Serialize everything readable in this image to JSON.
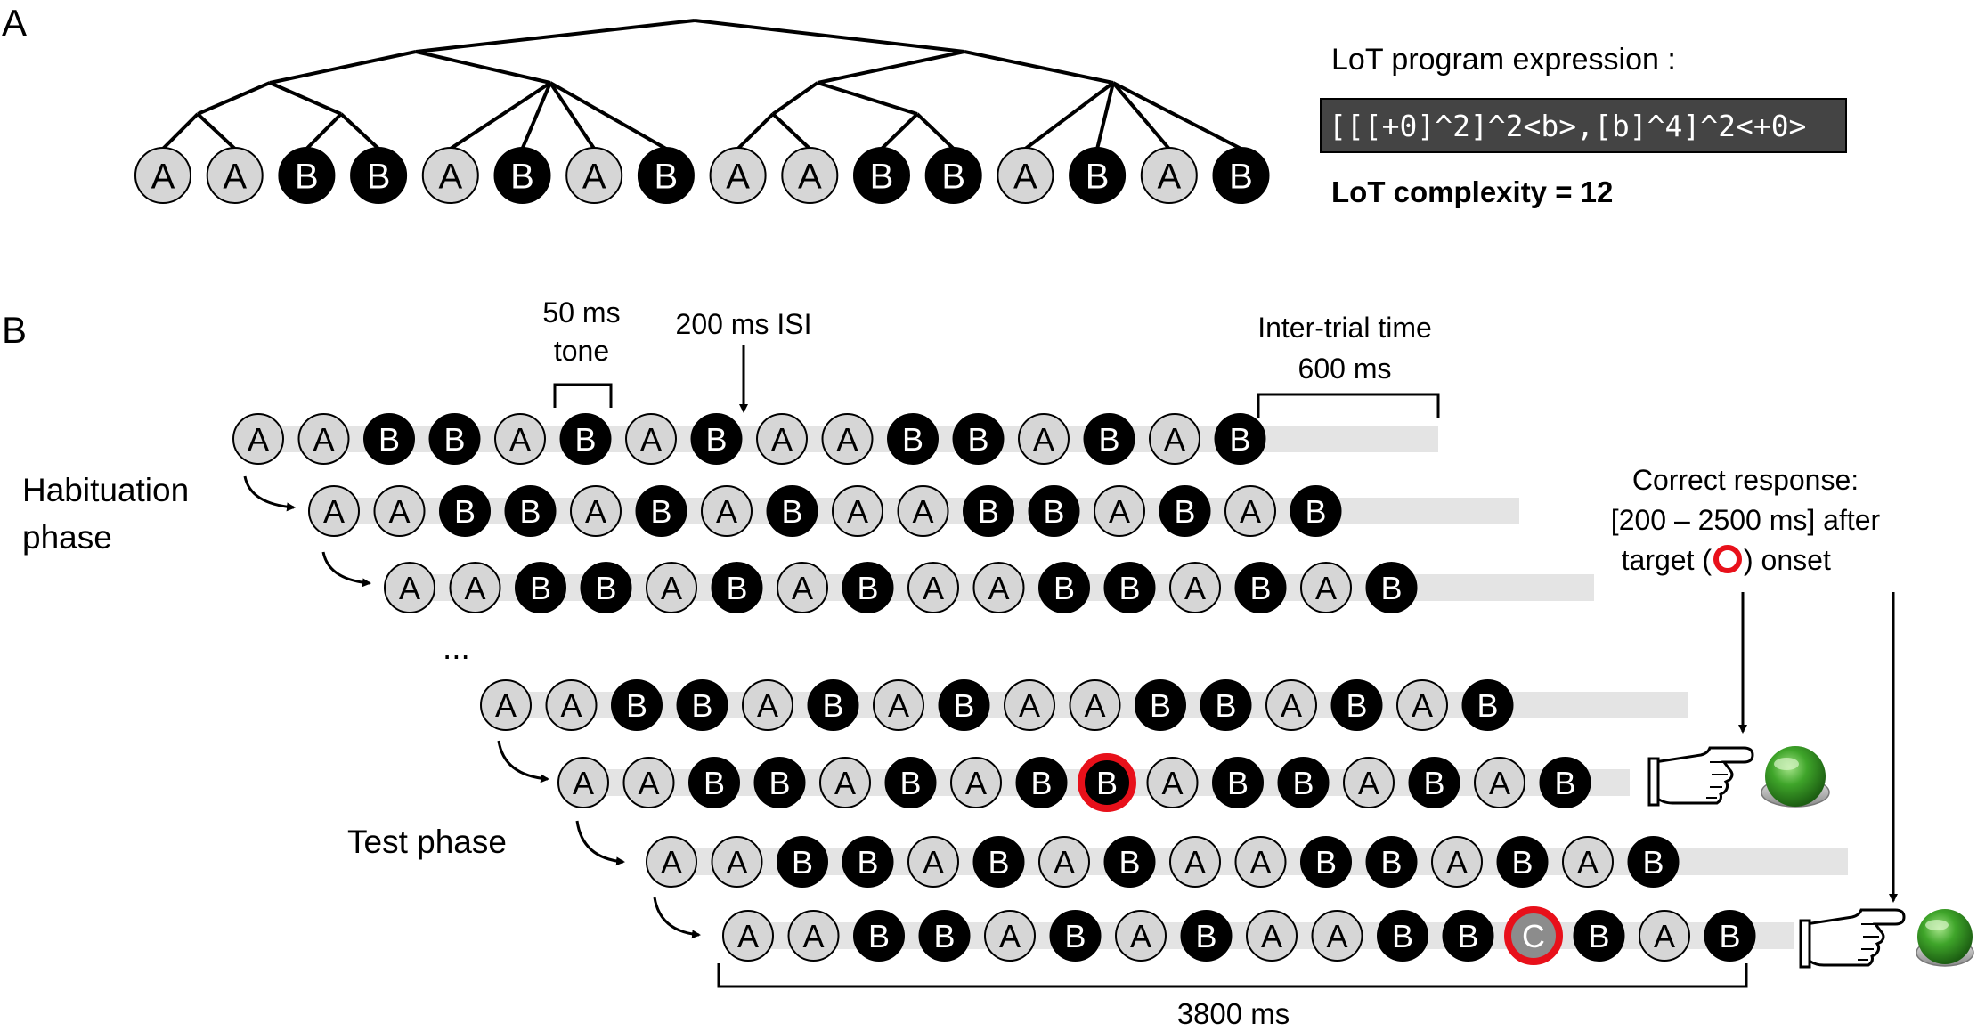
{
  "panel_a": {
    "label": "A",
    "sequence": [
      "A",
      "A",
      "B",
      "B",
      "A",
      "B",
      "A",
      "B",
      "A",
      "A",
      "B",
      "B",
      "A",
      "B",
      "A",
      "B"
    ],
    "program_title": "LoT program expression :",
    "program_expression": "[[[+0]^2]^2<b>,[b]^4]^2<+0>",
    "complexity_label": "LoT complexity = 12"
  },
  "panel_b": {
    "label": "B",
    "tone_label_line1": "50 ms",
    "tone_label_line2": "tone",
    "isi_label": "200 ms ISI",
    "intertrial_line1": "Inter-trial time",
    "intertrial_line2": "600 ms",
    "habituation_line1": "Habituation",
    "habituation_line2": "phase",
    "ellipsis": "...",
    "test_label": "Test phase",
    "response_line1": "Correct response:",
    "response_line2": "[200 – 2500 ms] after",
    "response_line3_left": "target (",
    "response_line3_right": ") onset",
    "duration_label": "3800 ms",
    "trials": [
      {
        "sequence": [
          "A",
          "A",
          "B",
          "B",
          "A",
          "B",
          "A",
          "B",
          "A",
          "A",
          "B",
          "B",
          "A",
          "B",
          "A",
          "B"
        ],
        "deviant_index": null
      },
      {
        "sequence": [
          "A",
          "A",
          "B",
          "B",
          "A",
          "B",
          "A",
          "B",
          "A",
          "A",
          "B",
          "B",
          "A",
          "B",
          "A",
          "B"
        ],
        "deviant_index": null
      },
      {
        "sequence": [
          "A",
          "A",
          "B",
          "B",
          "A",
          "B",
          "A",
          "B",
          "A",
          "A",
          "B",
          "B",
          "A",
          "B",
          "A",
          "B"
        ],
        "deviant_index": null
      },
      {
        "sequence": [
          "A",
          "A",
          "B",
          "B",
          "A",
          "B",
          "A",
          "B",
          "A",
          "A",
          "B",
          "B",
          "A",
          "B",
          "A",
          "B"
        ],
        "deviant_index": null
      },
      {
        "sequence": [
          "A",
          "A",
          "B",
          "B",
          "A",
          "B",
          "A",
          "B",
          "B",
          "A",
          "B",
          "B",
          "A",
          "B",
          "A",
          "B"
        ],
        "deviant_index": 8
      },
      {
        "sequence": [
          "A",
          "A",
          "B",
          "B",
          "A",
          "B",
          "A",
          "B",
          "A",
          "A",
          "B",
          "B",
          "A",
          "B",
          "A",
          "B"
        ],
        "deviant_index": null
      },
      {
        "sequence": [
          "A",
          "A",
          "B",
          "B",
          "A",
          "B",
          "A",
          "B",
          "A",
          "A",
          "B",
          "B",
          "C",
          "B",
          "A",
          "B"
        ],
        "deviant_index": 12
      }
    ]
  },
  "colors": {
    "tone_a": "#d6d6d6",
    "tone_b": "#000000",
    "tone_c": "#8c8c8c",
    "deviant_ring": "#e8101a",
    "program_box": "#444444",
    "trial_bar": "#e4e4e4",
    "button_green": "#2f8f1f"
  },
  "icons": [
    "pointing-hand-icon",
    "green-button-icon"
  ]
}
